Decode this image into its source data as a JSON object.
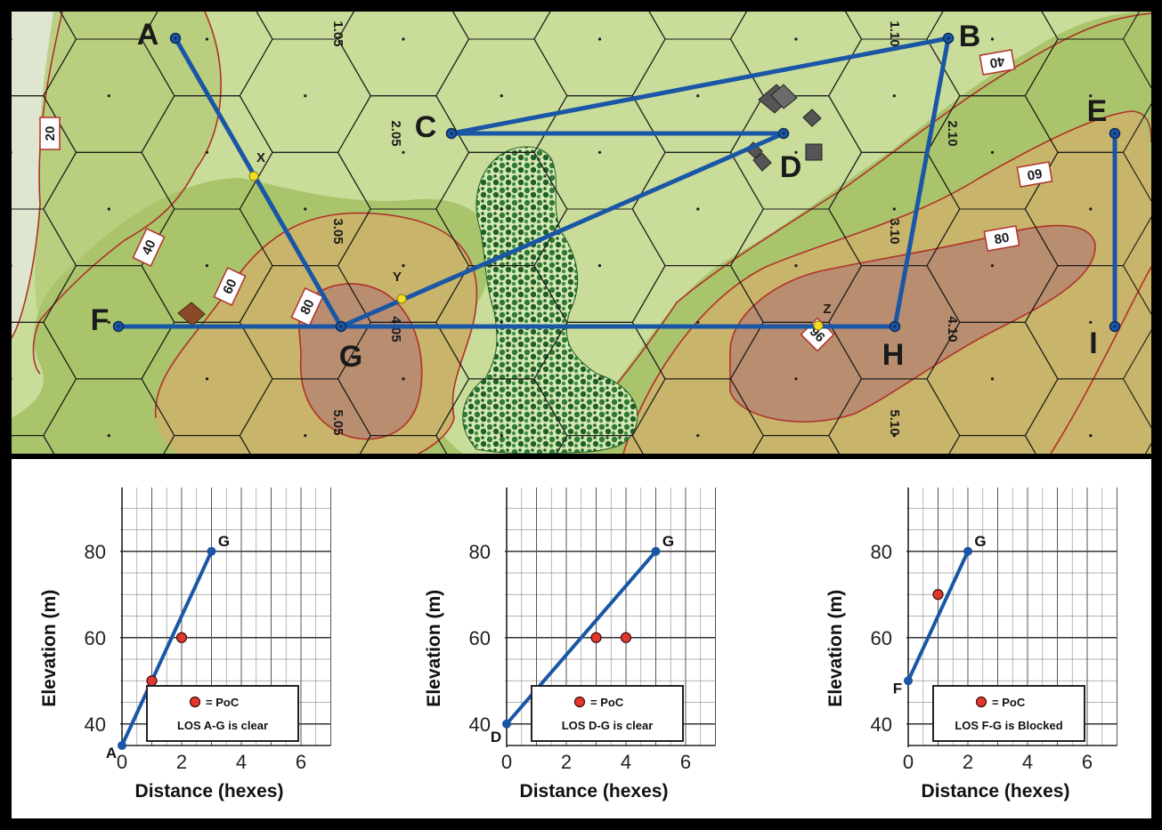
{
  "map": {
    "points": [
      {
        "id": "A",
        "label": "A"
      },
      {
        "id": "B",
        "label": "B"
      },
      {
        "id": "C",
        "label": "C"
      },
      {
        "id": "D",
        "label": "D"
      },
      {
        "id": "E",
        "label": "E"
      },
      {
        "id": "F",
        "label": "F"
      },
      {
        "id": "G",
        "label": "G"
      },
      {
        "id": "H",
        "label": "H"
      },
      {
        "id": "I",
        "label": "I"
      }
    ],
    "intersections": [
      "X",
      "Y",
      "Z"
    ],
    "hex_numbers": [
      "1.05",
      "2.05",
      "3.05",
      "4.05",
      "5.05",
      "1.10",
      "2.10",
      "3.10",
      "4.10",
      "5.10"
    ],
    "contour_labels": [
      "20",
      "40",
      "60",
      "80",
      "40",
      "60",
      "80",
      "96"
    ],
    "colors": {
      "los_line": "#1a56a6",
      "contour": "#b0312a",
      "terrain_low": "#c9dc9a",
      "terrain_mid": "#a9c46a",
      "terrain_high": "#c8a85a",
      "terrain_peak": "#b98d70",
      "woods": "#2e7a35",
      "poc": "#e0382f",
      "intersection": "#f2e020"
    }
  },
  "chart_data": [
    {
      "type": "line",
      "xlabel": "Distance (hexes)",
      "ylabel": "Elevation (m)",
      "xlim": [
        0,
        7
      ],
      "ylim": [
        35,
        90
      ],
      "xticks": [
        "0",
        "2",
        "4",
        "6"
      ],
      "yticks": [
        "40",
        "60",
        "80"
      ],
      "series": [
        {
          "values": [
            [
              0,
              35
            ],
            [
              3,
              80
            ]
          ]
        }
      ],
      "endpoints": [
        {
          "label": "A",
          "x": 0,
          "y": 35
        },
        {
          "label": "G",
          "x": 3,
          "y": 80
        }
      ],
      "poc": [
        {
          "x": 1,
          "y": 50
        },
        {
          "x": 2,
          "y": 60
        }
      ],
      "legend": {
        "poc_label": "= PoC",
        "caption": "LOS A-G is clear"
      }
    },
    {
      "type": "line",
      "xlabel": "Distance (hexes)",
      "ylabel": "Elevation (m)",
      "xlim": [
        0,
        7
      ],
      "ylim": [
        35,
        90
      ],
      "xticks": [
        "0",
        "2",
        "4",
        "6"
      ],
      "yticks": [
        "40",
        "60",
        "80"
      ],
      "series": [
        {
          "values": [
            [
              0,
              40
            ],
            [
              5,
              80
            ]
          ]
        }
      ],
      "endpoints": [
        {
          "label": "D",
          "x": 0,
          "y": 40
        },
        {
          "label": "G",
          "x": 5,
          "y": 80
        }
      ],
      "poc": [
        {
          "x": 3,
          "y": 60
        },
        {
          "x": 4,
          "y": 60
        }
      ],
      "legend": {
        "poc_label": "= PoC",
        "caption": "LOS D-G is clear"
      }
    },
    {
      "type": "line",
      "xlabel": "Distance (hexes)",
      "ylabel": "Elevation (m)",
      "xlim": [
        0,
        7
      ],
      "ylim": [
        35,
        90
      ],
      "xticks": [
        "0",
        "2",
        "4",
        "6"
      ],
      "yticks": [
        "40",
        "60",
        "80"
      ],
      "series": [
        {
          "values": [
            [
              0,
              50
            ],
            [
              2,
              80
            ]
          ]
        }
      ],
      "endpoints": [
        {
          "label": "F",
          "x": 0,
          "y": 50
        },
        {
          "label": "G",
          "x": 2,
          "y": 80
        }
      ],
      "poc": [
        {
          "x": 1,
          "y": 70
        }
      ],
      "legend": {
        "poc_label": "= PoC",
        "caption": "LOS F-G is Blocked"
      }
    }
  ]
}
